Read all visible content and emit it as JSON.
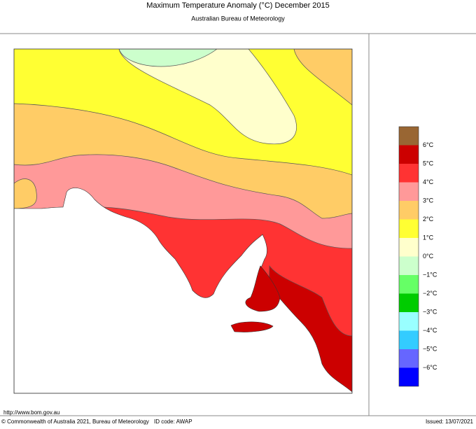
{
  "title": "Maximum Temperature Anomaly (°C)  December 2015",
  "subtitle": "Australian Bureau of Meteorology",
  "legend": {
    "colors": [
      "#996633",
      "#cc0000",
      "#ff3333",
      "#ff9999",
      "#ffcc66",
      "#ffff33",
      "#ffffcc",
      "#ccffcc",
      "#66ff66",
      "#00cc00",
      "#99ffff",
      "#33ccff",
      "#6666ff",
      "#0000ff"
    ],
    "labels": [
      "6°C",
      "5°C",
      "4°C",
      "3°C",
      "2°C",
      "1°C",
      "0°C",
      "−1°C",
      "−2°C",
      "−3°C",
      "−4°C",
      "−5°C",
      "−6°C"
    ]
  },
  "footer": {
    "url": "http://www.bom.gov.au",
    "copyright": "© Commonwealth of Australia 2021, Bureau of Meteorology",
    "id_code": "ID code: AWAP",
    "issued": "Issued: 13/07/2021"
  }
}
